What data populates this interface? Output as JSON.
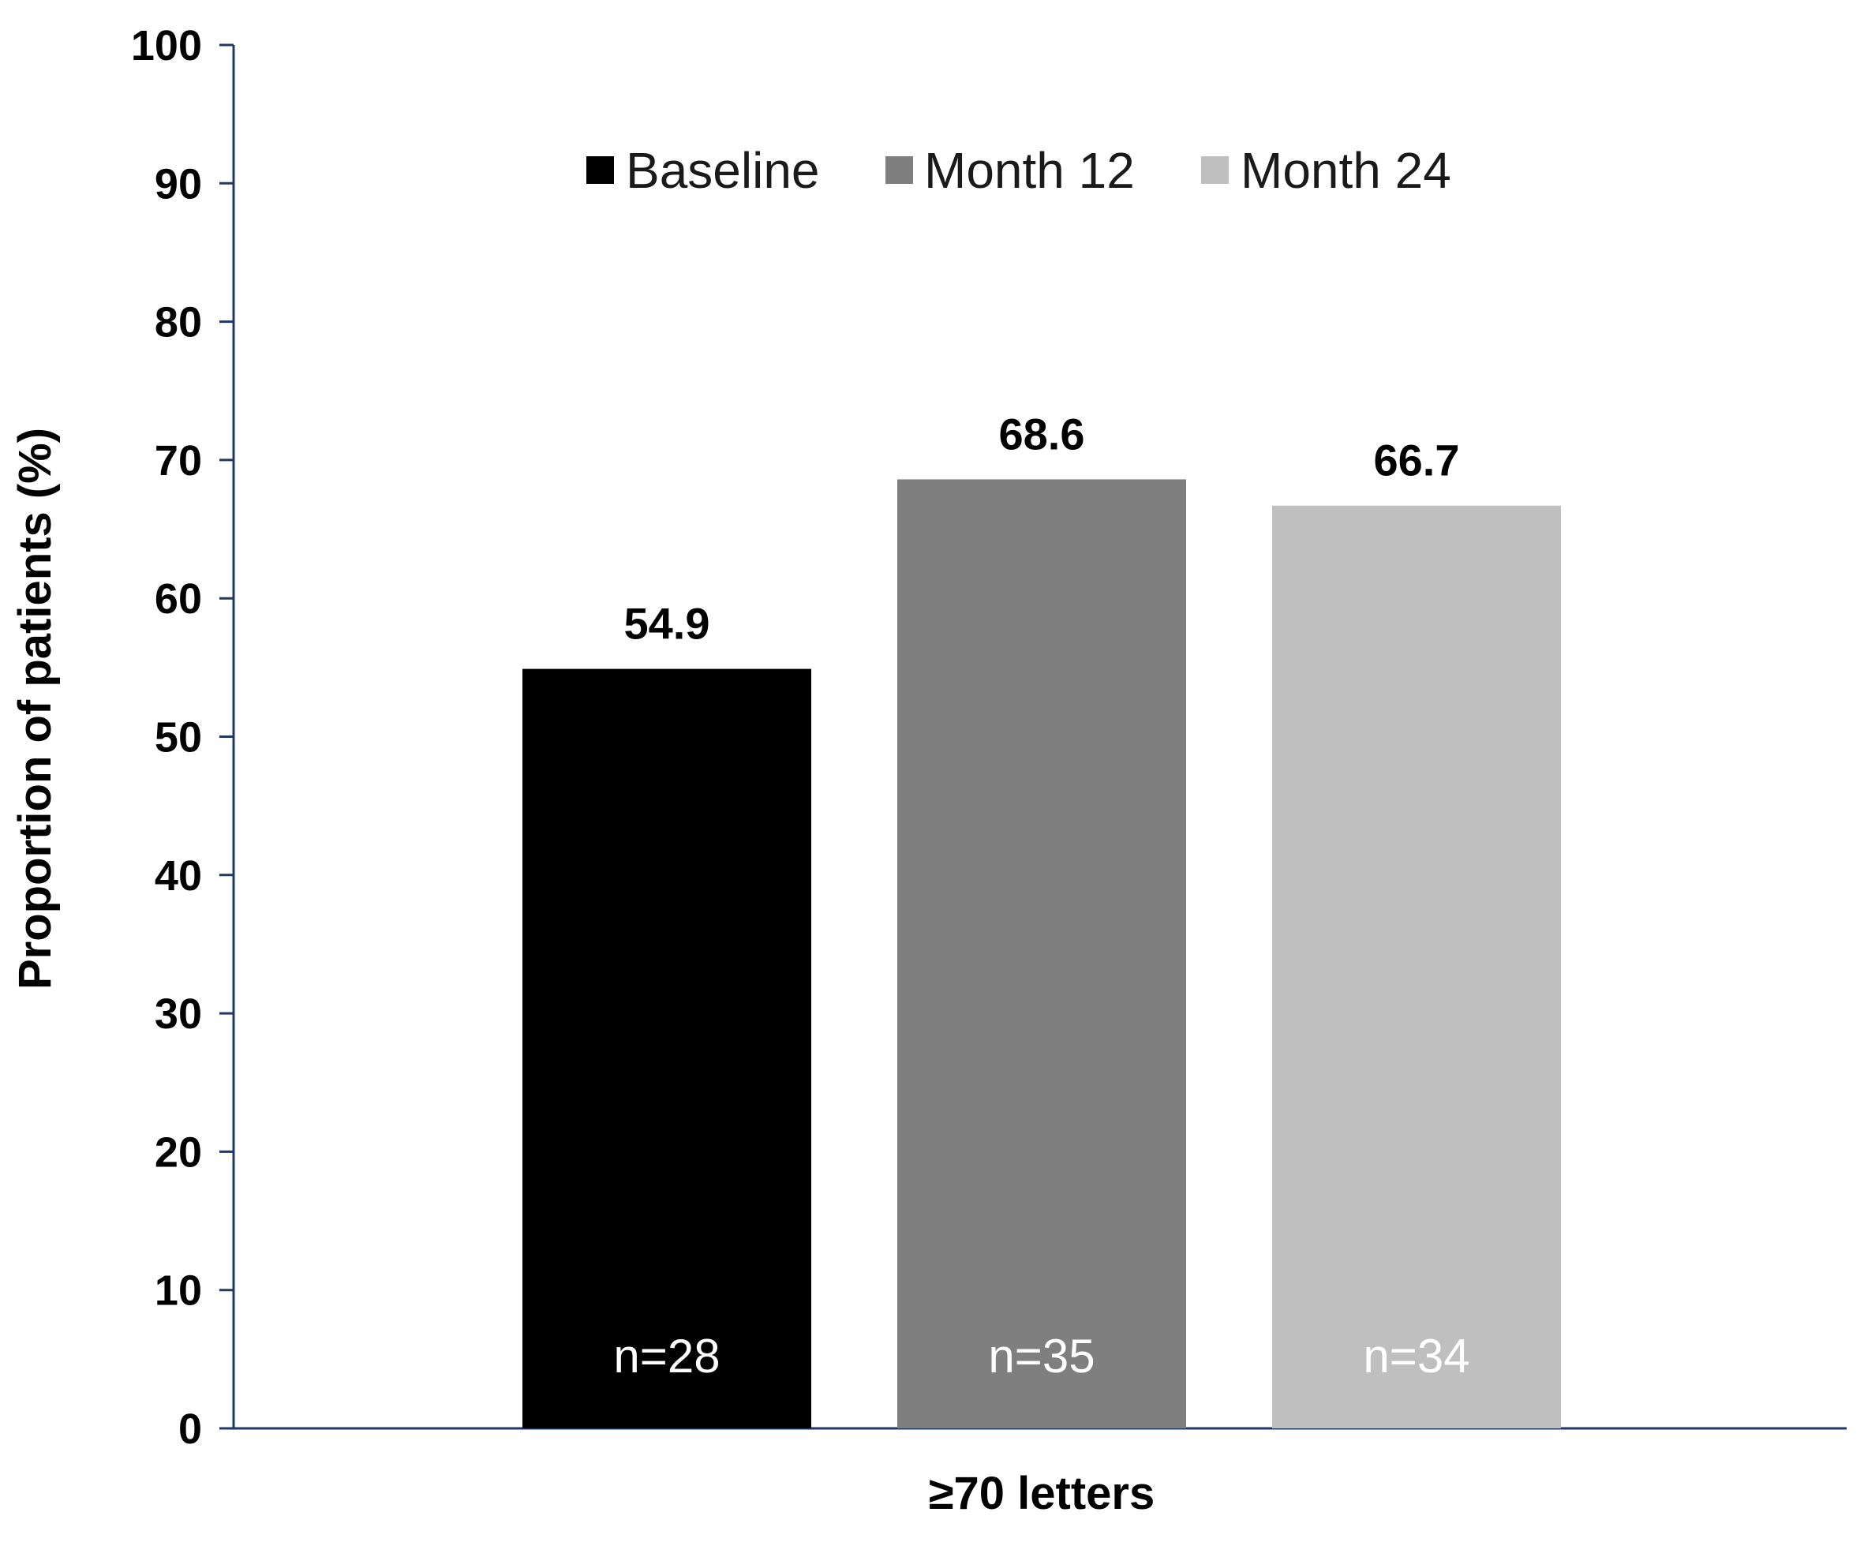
{
  "chart_data": {
    "type": "bar",
    "title": "",
    "xlabel": "≥70 letters",
    "ylabel": "Proportion of patients (%)",
    "ylim": [
      0,
      100
    ],
    "yticks": [
      0,
      10,
      20,
      30,
      40,
      50,
      60,
      70,
      80,
      90,
      100
    ],
    "yticks_labels": [
      "0",
      "10",
      "20",
      "30",
      "40",
      "50",
      "60",
      "70",
      "80",
      "90",
      "100"
    ],
    "grid": false,
    "legend_position": "top",
    "categories": [
      "≥70 letters"
    ],
    "series": [
      {
        "name": "Baseline",
        "values": [
          54.9
        ],
        "value_label": "54.9",
        "n_label": "n=28",
        "color": "#000000"
      },
      {
        "name": "Month 12",
        "values": [
          68.6
        ],
        "value_label": "68.6",
        "n_label": "n=35",
        "color": "#7f7f7f"
      },
      {
        "name": "Month 24",
        "values": [
          66.7
        ],
        "value_label": "66.7",
        "n_label": "n=34",
        "color": "#bfbfbf"
      }
    ],
    "colors": {
      "axis": "#1f3864"
    }
  }
}
